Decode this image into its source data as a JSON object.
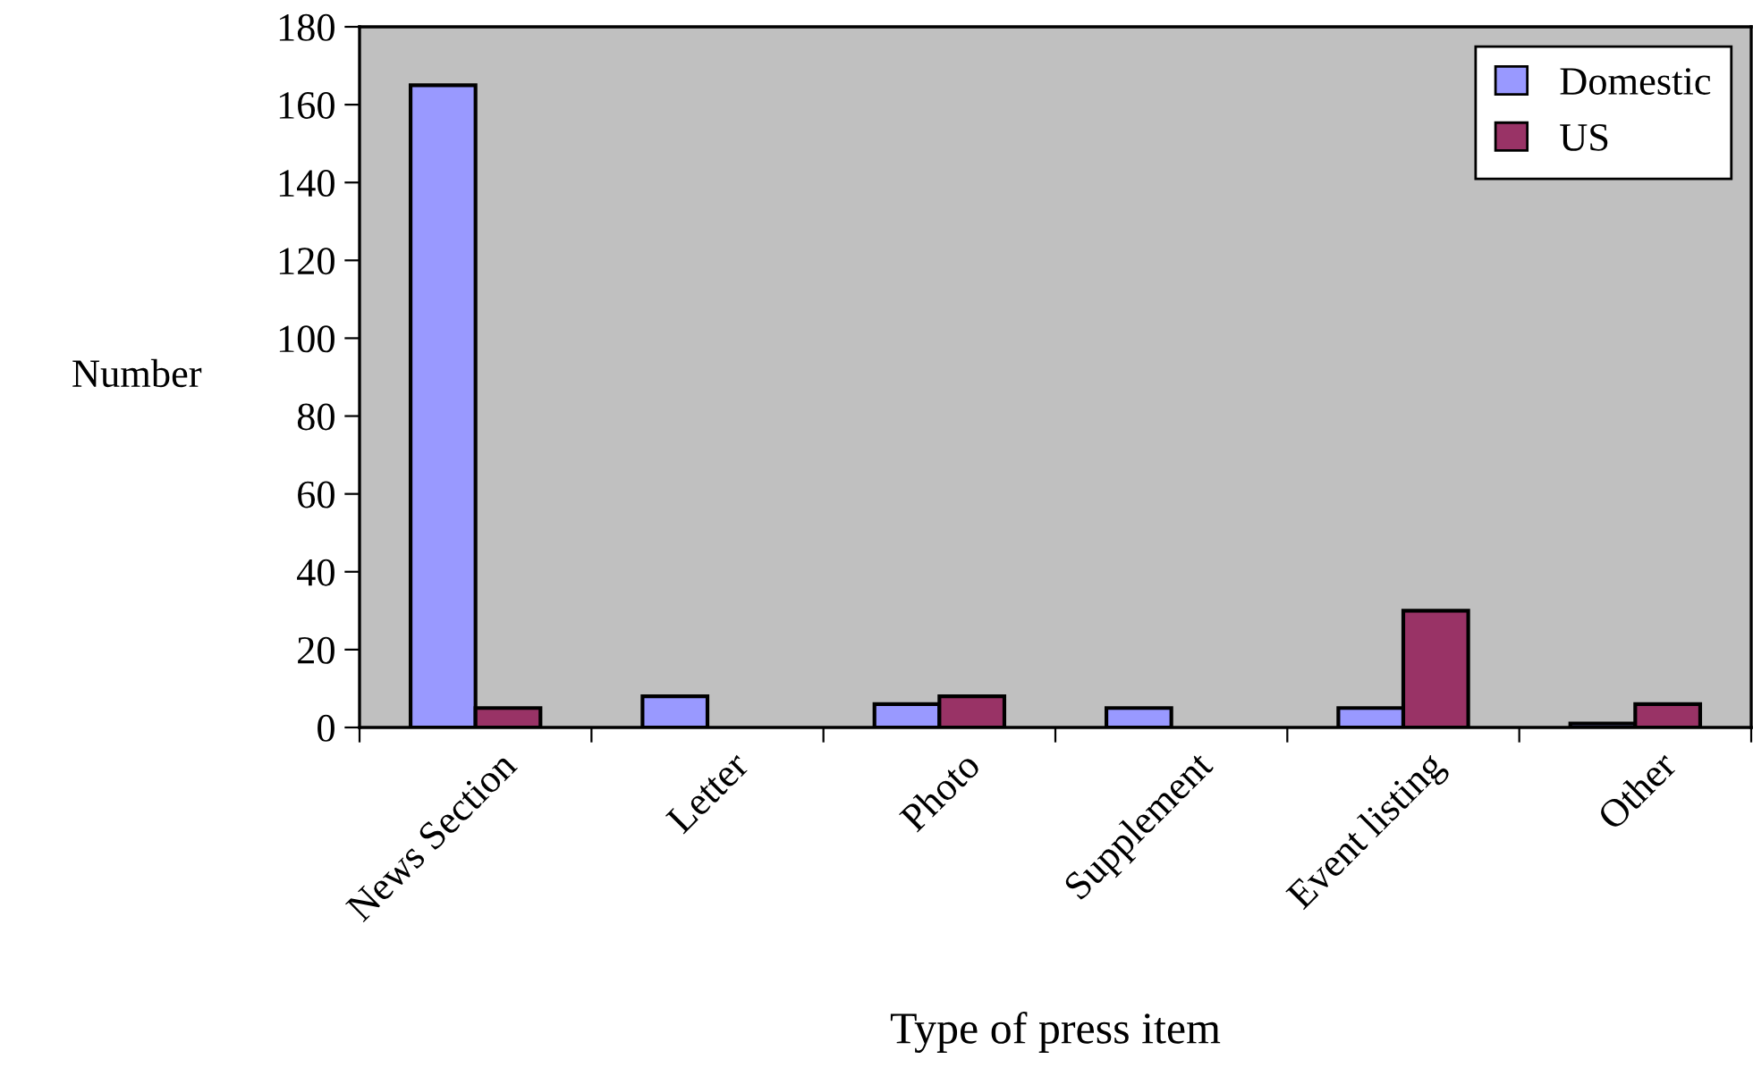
{
  "chart_data": {
    "type": "bar",
    "xlabel": "Type of press item",
    "ylabel": "Number",
    "categories": [
      "News Section",
      "Letter",
      "Photo",
      "Supplement",
      "Event listing",
      "Other"
    ],
    "series": [
      {
        "name": "Domestic",
        "color": "#9999ff",
        "values": [
          165,
          8,
          6,
          5,
          5,
          1
        ]
      },
      {
        "name": "US",
        "color": "#993366",
        "values": [
          5,
          null,
          8,
          null,
          30,
          6
        ]
      }
    ],
    "ylim": [
      0,
      180
    ],
    "yticks": [
      0,
      20,
      40,
      60,
      80,
      100,
      120,
      140,
      160,
      180
    ],
    "grid": false,
    "legend": "top right"
  }
}
